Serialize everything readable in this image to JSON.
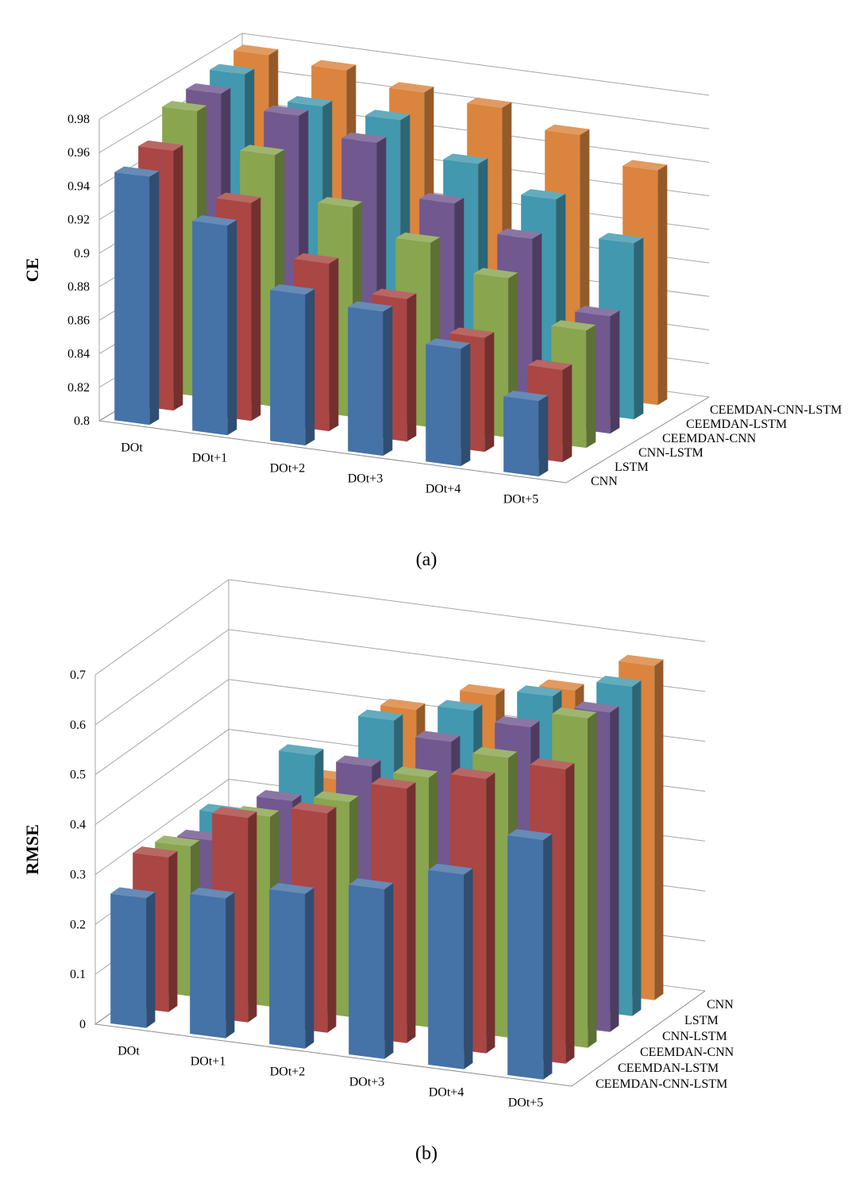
{
  "chart_data": [
    {
      "type": "bar3d",
      "ylabel": "CE",
      "caption": "(a)",
      "categories": [
        "DOt",
        "DOt+1",
        "DOt+2",
        "DOt+3",
        "DOt+4",
        "DOt+5"
      ],
      "ylim": [
        0.8,
        0.98
      ],
      "yticks": [
        0.8,
        0.82,
        0.84,
        0.86,
        0.88,
        0.9,
        0.92,
        0.94,
        0.96,
        0.98
      ],
      "grid": true,
      "series": [
        {
          "name": "CNN",
          "color": "#4572a7",
          "values": [
            0.948,
            0.925,
            0.89,
            0.886,
            0.87,
            0.845
          ]
        },
        {
          "name": "LSTM",
          "color": "#aa4643",
          "values": [
            0.955,
            0.93,
            0.9,
            0.885,
            0.868,
            0.855
          ]
        },
        {
          "name": "CNN-LSTM",
          "color": "#89a54e",
          "values": [
            0.97,
            0.95,
            0.925,
            0.91,
            0.895,
            0.87
          ]
        },
        {
          "name": "CEEMDAN-CNN",
          "color": "#71588f",
          "values": [
            0.972,
            0.965,
            0.955,
            0.925,
            0.91,
            0.87
          ]
        },
        {
          "name": "CEEMDAN-LSTM",
          "color": "#4198af",
          "values": [
            0.975,
            0.962,
            0.96,
            0.94,
            0.925,
            0.905
          ]
        },
        {
          "name": "CEEMDAN-CNN-LSTM",
          "color": "#db843d",
          "values": [
            0.978,
            0.975,
            0.968,
            0.965,
            0.955,
            0.94
          ]
        }
      ]
    },
    {
      "type": "bar3d",
      "ylabel": "RMSE",
      "caption": "(b)",
      "categories": [
        "DOt",
        "DOt+1",
        "DOt+2",
        "DOt+3",
        "DOt+4",
        "DOt+5"
      ],
      "ylim": [
        0,
        0.7
      ],
      "yticks": [
        0,
        0.1,
        0.2,
        0.3,
        0.4,
        0.5,
        0.6,
        0.7
      ],
      "grid": true,
      "series": [
        {
          "name": "CEEMDAN-CNN-LSTM",
          "color": "#4572a7",
          "values": [
            0.26,
            0.28,
            0.31,
            0.34,
            0.39,
            0.48
          ]
        },
        {
          "name": "CEEMDAN-LSTM",
          "color": "#aa4643",
          "values": [
            0.31,
            0.41,
            0.44,
            0.51,
            0.55,
            0.59
          ]
        },
        {
          "name": "CEEMDAN-CNN",
          "color": "#89a54e",
          "values": [
            0.3,
            0.38,
            0.43,
            0.5,
            0.56,
            0.66
          ]
        },
        {
          "name": "CNN-LSTM",
          "color": "#71588f",
          "values": [
            0.28,
            0.38,
            0.47,
            0.54,
            0.59,
            0.64
          ]
        },
        {
          "name": "LSTM",
          "color": "#4198af",
          "values": [
            0.3,
            0.44,
            0.53,
            0.57,
            0.62,
            0.66
          ]
        },
        {
          "name": "CNN",
          "color": "#db843d",
          "values": [
            0.19,
            0.36,
            0.52,
            0.57,
            0.6,
            0.67
          ]
        }
      ]
    }
  ]
}
